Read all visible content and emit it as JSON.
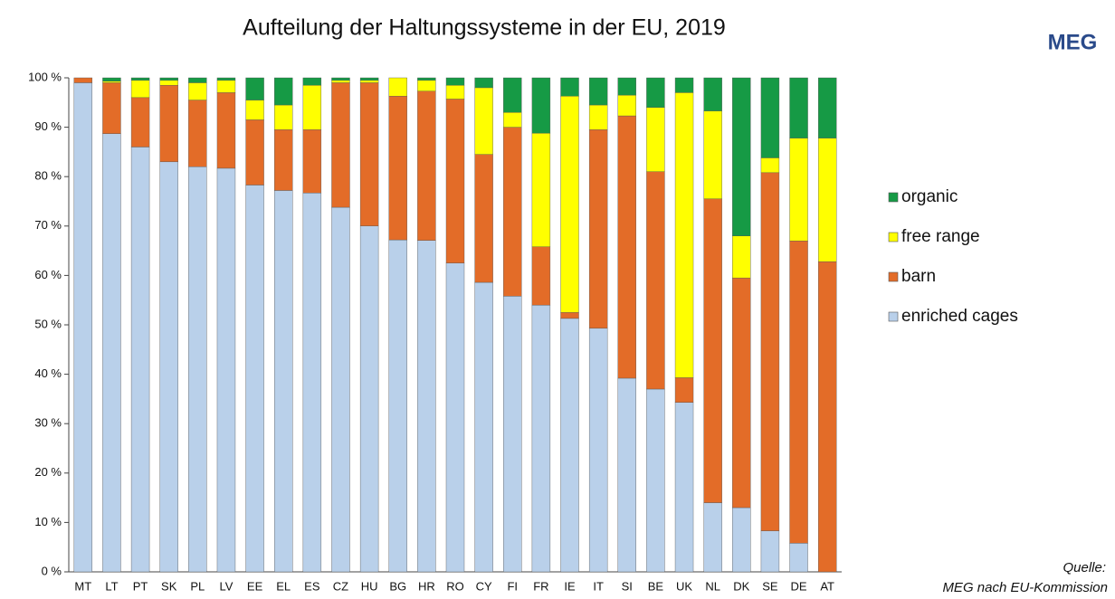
{
  "chart_data": {
    "type": "stacked_bar",
    "title": "Aufteilung der Haltungssysteme in der EU, 2019",
    "logo": "MEG",
    "source": [
      "Quelle:",
      "MEG nach EU-Kommission"
    ],
    "categories": [
      "MT",
      "LT",
      "PT",
      "SK",
      "PL",
      "LV",
      "EE",
      "EL",
      "ES",
      "CZ",
      "HU",
      "BG",
      "HR",
      "RO",
      "CY",
      "FI",
      "FR",
      "IE",
      "IT",
      "SI",
      "BE",
      "UK",
      "NL",
      "DK",
      "SE",
      "DE",
      "AT"
    ],
    "series": [
      {
        "name": "enriched cages",
        "color": "#b9d0ea",
        "values": [
          99,
          88.7,
          86,
          83,
          82,
          81.7,
          78.3,
          77.2,
          76.7,
          73.8,
          70,
          67.2,
          67.1,
          62.5,
          58.6,
          55.8,
          54,
          51.3,
          49.3,
          39.2,
          37,
          34.3,
          14,
          13,
          8.3,
          5.8,
          0
        ]
      },
      {
        "name": "barn",
        "color": "#e36c28",
        "values": [
          1,
          10.3,
          10,
          15.5,
          13.5,
          15.3,
          13.2,
          12.3,
          12.8,
          25.2,
          29,
          29.1,
          30.2,
          33.2,
          25.9,
          34.2,
          11.8,
          1.2,
          40.2,
          53.1,
          44,
          5,
          61.5,
          46.5,
          72.5,
          61.2,
          62.8
        ]
      },
      {
        "name": "free range",
        "color": "#ffff00",
        "values": [
          0,
          0.3,
          3.5,
          1,
          3.5,
          2.5,
          4,
          5,
          9,
          0.5,
          0.5,
          3.7,
          2.2,
          2.8,
          13.5,
          3,
          23,
          43.8,
          5,
          4.2,
          13,
          57.7,
          17.8,
          8.5,
          3,
          20.8,
          25
        ]
      },
      {
        "name": "organic",
        "color": "#169a45",
        "values": [
          0,
          0.7,
          0.5,
          0.5,
          1,
          0.5,
          4.5,
          5.5,
          1.5,
          0.5,
          0.5,
          0,
          0.5,
          1.5,
          2,
          7,
          11.2,
          3.7,
          5.5,
          3.5,
          6,
          3,
          6.7,
          32,
          16.2,
          12.2,
          12.2
        ]
      }
    ],
    "ylim": [
      0,
      100
    ],
    "yticks": [
      {
        "value": 0,
        "label": "0 %"
      },
      {
        "value": 10,
        "label": "10 %"
      },
      {
        "value": 20,
        "label": "20 %"
      },
      {
        "value": 30,
        "label": "30 %"
      },
      {
        "value": 40,
        "label": "40 %"
      },
      {
        "value": 50,
        "label": "50 %"
      },
      {
        "value": 60,
        "label": "60 %"
      },
      {
        "value": 70,
        "label": "70 %"
      },
      {
        "value": 80,
        "label": "80 %"
      },
      {
        "value": 90,
        "label": "90 %"
      },
      {
        "value": 100,
        "label": "100 %"
      }
    ],
    "grid": false,
    "legend": "right"
  }
}
